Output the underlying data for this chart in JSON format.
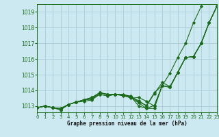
{
  "background_color": "#cce8f0",
  "grid_color": "#aaccd4",
  "line_color": "#1a6b1a",
  "xlabel": "Graphe pression niveau de la mer (hPa)",
  "x_ticks": [
    0,
    1,
    2,
    3,
    4,
    5,
    6,
    7,
    8,
    9,
    10,
    11,
    12,
    13,
    14,
    15,
    16,
    17,
    18,
    19,
    20,
    21,
    22,
    23
  ],
  "y_ticks": [
    1013,
    1014,
    1015,
    1016,
    1017,
    1018,
    1019
  ],
  "ylim": [
    1012.6,
    1019.5
  ],
  "xlim": [
    0,
    23
  ],
  "lines": [
    [
      1012.9,
      1013.0,
      1012.9,
      1012.85,
      1013.1,
      1013.25,
      1013.4,
      1013.55,
      1013.85,
      1013.75,
      1013.75,
      1013.7,
      1013.65,
      1013.25,
      1013.05,
      1013.85,
      1014.3,
      1015.1,
      1016.1,
      1017.0,
      1018.3,
      1019.35
    ],
    [
      1012.9,
      1013.0,
      1012.9,
      1012.85,
      1013.1,
      1013.25,
      1013.4,
      1013.55,
      1013.85,
      1013.75,
      1013.75,
      1013.7,
      1013.5,
      1013.55,
      1013.3,
      1013.0,
      1014.3,
      1014.2,
      1015.15,
      1016.1,
      1016.15,
      1017.0,
      1018.3,
      1019.35
    ],
    [
      1012.9,
      1013.0,
      1012.9,
      1012.8,
      1013.1,
      1013.25,
      1013.3,
      1013.4,
      1013.75,
      1013.65,
      1013.75,
      1013.75,
      1013.6,
      1013.0,
      1012.85,
      1012.85,
      1014.3,
      1014.2,
      1015.15,
      1016.1,
      1016.15,
      1017.0,
      1018.3,
      1019.35
    ],
    [
      1012.9,
      1013.0,
      1012.9,
      1012.75,
      1013.1,
      1013.25,
      1013.4,
      1013.45,
      1013.85,
      1013.75,
      1013.75,
      1013.7,
      1013.55,
      1013.35,
      1013.0,
      1013.8,
      1014.5,
      1014.25,
      1015.15,
      1016.1,
      1016.15,
      1017.0,
      1018.3,
      1019.35
    ],
    [
      1012.9,
      1013.0,
      1012.9,
      1012.78,
      1013.1,
      1013.25,
      1013.4,
      1013.45,
      1013.75,
      1013.65,
      1013.75,
      1013.65,
      1013.55,
      1013.2,
      1012.85,
      1013.05,
      1014.3,
      1014.2,
      1015.15,
      1016.1,
      1016.15,
      1017.0,
      1018.3,
      1019.35
    ]
  ]
}
